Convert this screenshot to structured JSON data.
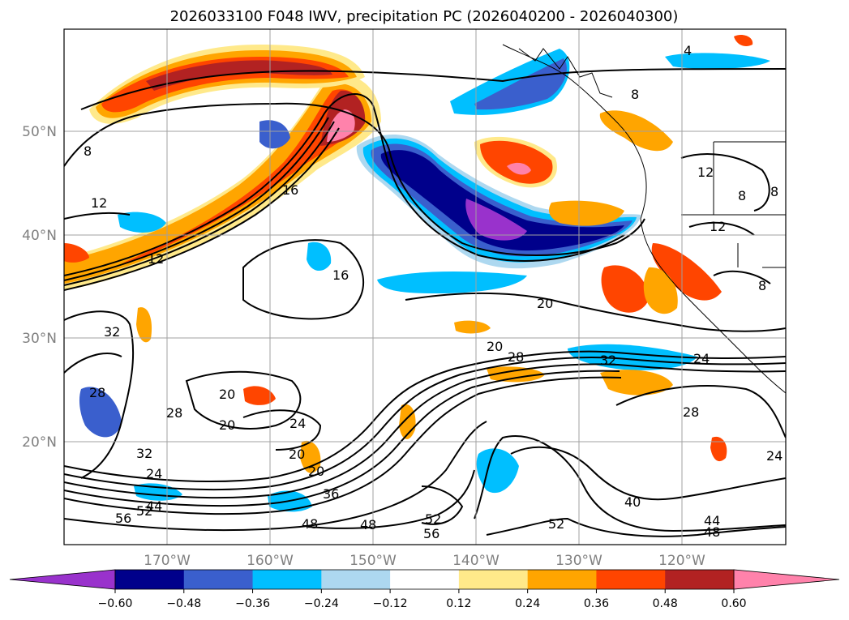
{
  "chart_data": {
    "type": "heatmap",
    "title": "2026033100 F048 IWV, precipitation PC (2026040200 - 2026040300)",
    "x_ticks": [
      "170°W",
      "160°W",
      "150°W",
      "140°W",
      "130°W",
      "120°W"
    ],
    "y_ticks": [
      "50°N",
      "40°N",
      "30°N",
      "20°N"
    ],
    "colorbar": {
      "levels": [
        -0.6,
        -0.48,
        -0.36,
        -0.24,
        -0.12,
        0.12,
        0.24,
        0.36,
        0.48,
        0.6
      ],
      "tick_labels": [
        "−0.60",
        "−0.48",
        "−0.36",
        "−0.24",
        "−0.12",
        "0.12",
        "0.24",
        "0.36",
        "0.48",
        "0.60"
      ],
      "colors": [
        "#9932cc",
        "#00008b",
        "#3a5fcd",
        "#00bfff",
        "#add8f0",
        "#ffffff",
        "#ffe98a",
        "#ffa500",
        "#ff4500",
        "#b22222",
        "#ff82ab"
      ],
      "extend": "both"
    },
    "contour_labels": [
      "8",
      "12",
      "16",
      "12",
      "16",
      "20",
      "20",
      "28",
      "32",
      "24",
      "32",
      "28",
      "28",
      "20",
      "20",
      "24",
      "20",
      "20",
      "24",
      "32",
      "36",
      "44",
      "52",
      "56",
      "48",
      "48",
      "52",
      "56",
      "52",
      "40",
      "44",
      "48",
      "28",
      "24",
      "12",
      "8",
      "8",
      "12",
      "8",
      "4",
      "8"
    ]
  }
}
